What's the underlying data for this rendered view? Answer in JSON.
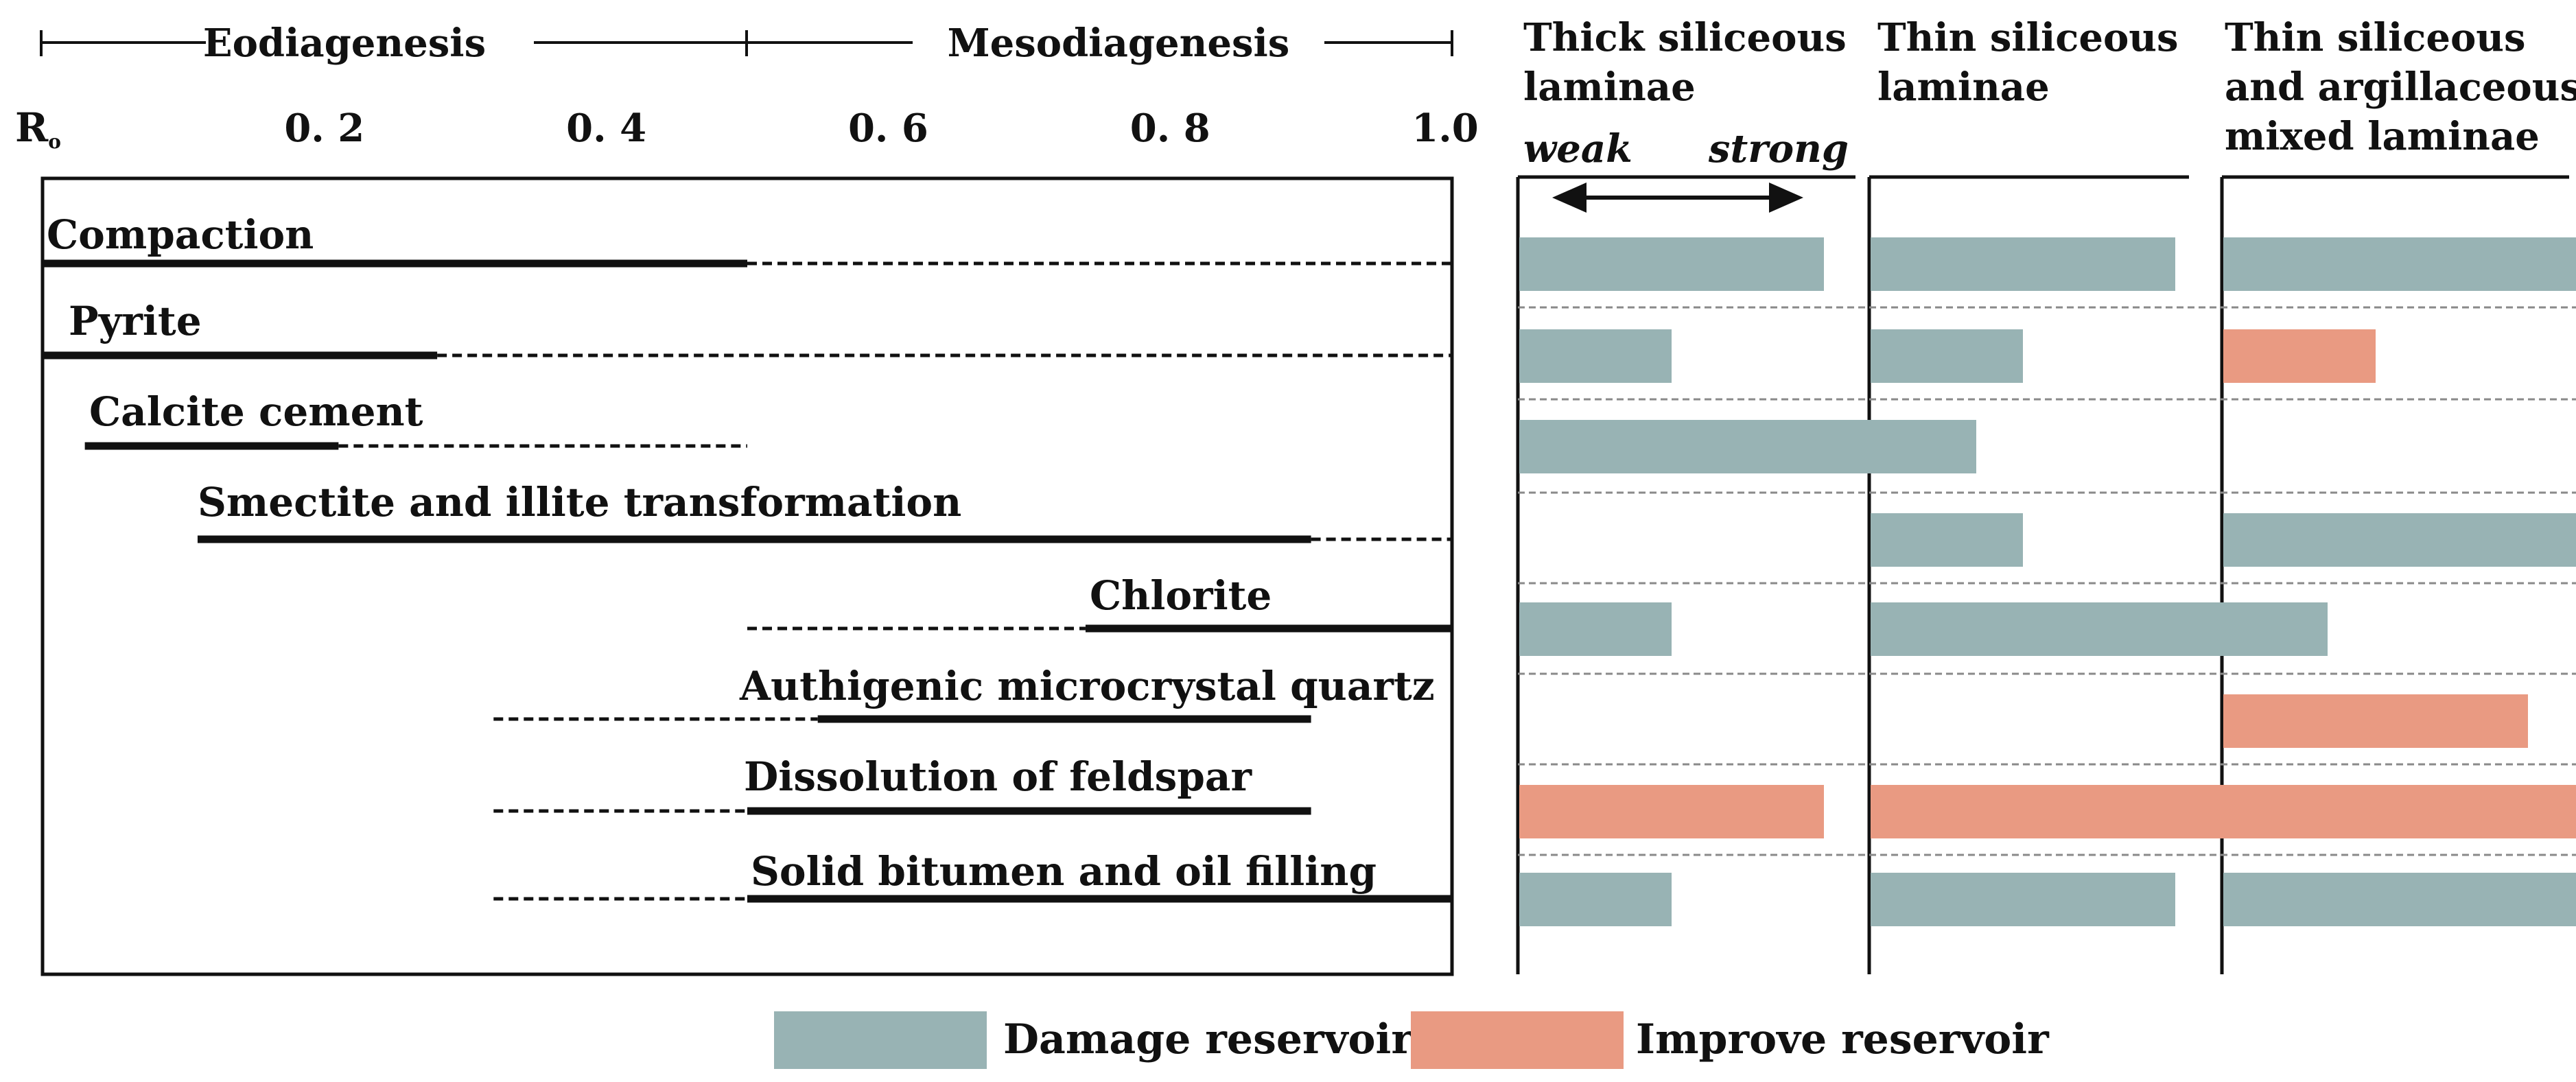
{
  "header": {
    "stage_eo": "Eodiagenesis",
    "stage_meso": "Mesodiagenesis"
  },
  "axis": {
    "label_main": "R",
    "label_sub": "o",
    "ticks": [
      "0. 2",
      "0. 4",
      "0. 6",
      "0. 8",
      "1.0"
    ]
  },
  "processes": [
    {
      "name": "Compaction",
      "solid": [
        0.0,
        0.5
      ],
      "dashed": [
        [
          0.5,
          1.0
        ]
      ]
    },
    {
      "name": "Pyrite",
      "solid": [
        0.0,
        0.28
      ],
      "dashed": [
        [
          0.28,
          1.0
        ]
      ]
    },
    {
      "name": "Calcite cement",
      "solid": [
        0.03,
        0.21
      ],
      "dashed": [
        [
          0.21,
          0.5
        ]
      ]
    },
    {
      "name": "Smectite and illite transformation",
      "solid": [
        0.11,
        0.9
      ],
      "dashed": [
        [
          0.9,
          1.0
        ]
      ]
    },
    {
      "name": "Chlorite",
      "solid": [
        0.74,
        1.0
      ],
      "dashed": [
        [
          0.5,
          0.74
        ]
      ]
    },
    {
      "name": "Authigenic microcrystal quartz",
      "solid": [
        0.55,
        0.9
      ],
      "dashed": [
        [
          0.32,
          0.55
        ]
      ]
    },
    {
      "name": "Dissolution of feldspar",
      "solid": [
        0.5,
        0.9
      ],
      "dashed": [
        [
          0.32,
          0.5
        ]
      ]
    },
    {
      "name": "Solid bitumen and oil filling",
      "solid": [
        0.5,
        1.0
      ],
      "dashed": [
        [
          0.32,
          0.5
        ]
      ]
    }
  ],
  "laminae_columns": [
    {
      "title_lines": [
        "Thick siliceous",
        "laminae"
      ],
      "scale_weak": "weak",
      "scale_strong": "strong"
    },
    {
      "title_lines": [
        "Thin siliceous",
        "laminae"
      ]
    },
    {
      "title_lines": [
        "Thin siliceous",
        "and argillaceous",
        "mixed laminae"
      ]
    }
  ],
  "impact_bars": [
    [
      {
        "type": "damage",
        "strength": 3
      },
      {
        "type": "damage",
        "strength": 3
      },
      {
        "type": "damage",
        "strength": 4
      }
    ],
    [
      {
        "type": "damage",
        "strength": 1.5
      },
      {
        "type": "damage",
        "strength": 1.5
      },
      {
        "type": "improve",
        "strength": 1.5
      }
    ],
    [
      {
        "type": "damage",
        "strength": 4.5
      },
      null,
      null
    ],
    [
      null,
      {
        "type": "damage",
        "strength": 1.5
      },
      {
        "type": "damage",
        "strength": 4
      }
    ],
    [
      {
        "type": "damage",
        "strength": 1.5
      },
      {
        "type": "damage",
        "strength": 4.5
      },
      null
    ],
    [
      null,
      null,
      {
        "type": "improve",
        "strength": 3
      }
    ],
    [
      {
        "type": "improve",
        "strength": 3
      },
      {
        "type": "improve",
        "strength": 4.5
      },
      {
        "type": "improve",
        "strength": 4
      }
    ],
    [
      {
        "type": "damage",
        "strength": 1.5
      },
      {
        "type": "damage",
        "strength": 3
      },
      {
        "type": "damage",
        "strength": 4
      }
    ]
  ],
  "legend": {
    "damage_label": "Damage reservoir",
    "improve_label": "Improve reservoir"
  },
  "colors": {
    "damage": "#98b3b4",
    "improve": "#e99a82",
    "line": "#111111",
    "separator": "#8a8a8a"
  }
}
